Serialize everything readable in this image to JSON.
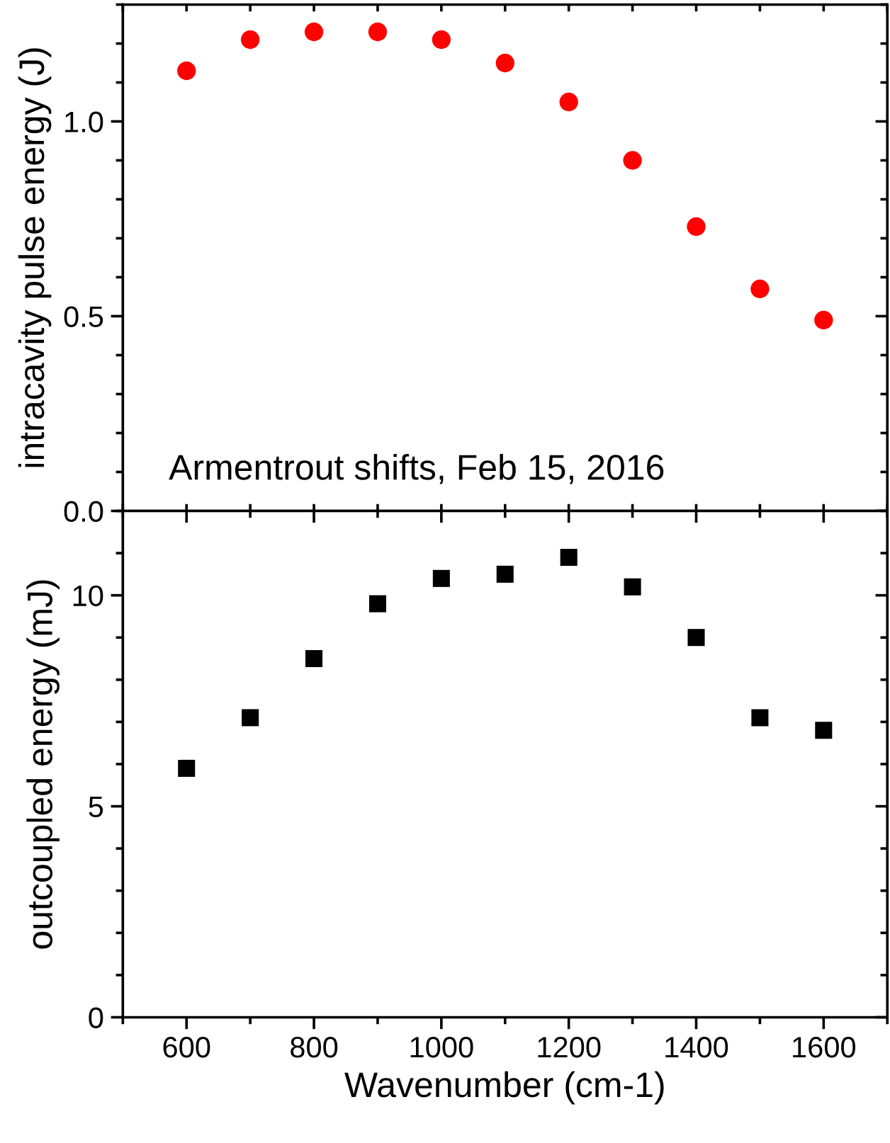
{
  "chart_data": [
    {
      "type": "scatter",
      "ylabel": "intracavity pulse energy (J)",
      "x": [
        600,
        700,
        800,
        900,
        1000,
        1100,
        1200,
        1300,
        1400,
        1500,
        1600
      ],
      "series": [
        {
          "color": "#ff0000",
          "values": [
            1.13,
            1.21,
            1.23,
            1.23,
            1.21,
            1.15,
            1.05,
            0.9,
            0.73,
            0.57,
            0.49
          ]
        }
      ],
      "marker": "circle",
      "annotations": [
        "Armentrout shifts, Feb 15, 2016"
      ],
      "tick_labels": "y",
      "grid": false,
      "xlim": [
        500,
        1700
      ],
      "xticks": [
        {
          "value": 500,
          "label": null
        },
        {
          "value": 600,
          "label": null
        },
        {
          "value": 700,
          "label": null
        },
        {
          "value": 800,
          "label": null
        },
        {
          "value": 900,
          "label": null
        },
        {
          "value": 1000,
          "label": null
        },
        {
          "value": 1100,
          "label": null
        },
        {
          "value": 1200,
          "label": null
        },
        {
          "value": 1300,
          "label": null
        },
        {
          "value": 1400,
          "label": null
        },
        {
          "value": 1500,
          "label": null
        },
        {
          "value": 1600,
          "label": null
        },
        {
          "value": 1700,
          "label": null
        }
      ],
      "ylim": [
        0,
        1.3
      ],
      "yticks": [
        {
          "value": 0,
          "label": "0.0"
        },
        {
          "value": 0.1,
          "label": null
        },
        {
          "value": 0.2,
          "label": null
        },
        {
          "value": 0.3,
          "label": null
        },
        {
          "value": 0.4,
          "label": null
        },
        0.5,
        {
          "value": 0.6,
          "label": null
        },
        {
          "value": 0.7,
          "label": null
        },
        {
          "value": 0.8,
          "label": null
        },
        {
          "value": 0.9,
          "label": null
        },
        {
          "value": 1,
          "label": "1.0"
        },
        {
          "value": 1.1,
          "label": null
        },
        {
          "value": 1.2,
          "label": null
        },
        {
          "value": 1.3,
          "label": null
        }
      ]
    },
    {
      "type": "scatter",
      "xlabel": "Wavenumber (cm-1)",
      "ylabel": "outcoupled energy (mJ)",
      "x": [
        600,
        700,
        800,
        900,
        1000,
        1100,
        1200,
        1300,
        1400,
        1500,
        1600
      ],
      "series": [
        {
          "color": "#000000",
          "values": [
            5.9,
            7.1,
            8.5,
            9.8,
            10.4,
            10.5,
            10.9,
            10.2,
            9.0,
            7.1,
            6.8
          ]
        }
      ],
      "marker": "square",
      "grid": false,
      "xlim": [
        500,
        1700
      ],
      "xticks": [
        {
          "value": 500,
          "label": null
        },
        600,
        {
          "value": 700,
          "label": null
        },
        800,
        {
          "value": 900,
          "label": null
        },
        1000,
        {
          "value": 1100,
          "label": null
        },
        1200,
        {
          "value": 1300,
          "label": null
        },
        1400,
        {
          "value": 1500,
          "label": null
        },
        1600,
        {
          "value": 1700,
          "label": null
        }
      ],
      "ylim": [
        0,
        12
      ],
      "yticks": [
        0,
        {
          "value": 1,
          "label": null
        },
        {
          "value": 2,
          "label": null
        },
        {
          "value": 3,
          "label": null
        },
        {
          "value": 4,
          "label": null
        },
        5,
        {
          "value": 6,
          "label": null
        },
        {
          "value": 7,
          "label": null
        },
        {
          "value": 8,
          "label": null
        },
        {
          "value": 9,
          "label": null
        },
        10,
        {
          "value": 11,
          "label": null
        },
        {
          "value": 12,
          "label": null
        }
      ]
    }
  ]
}
